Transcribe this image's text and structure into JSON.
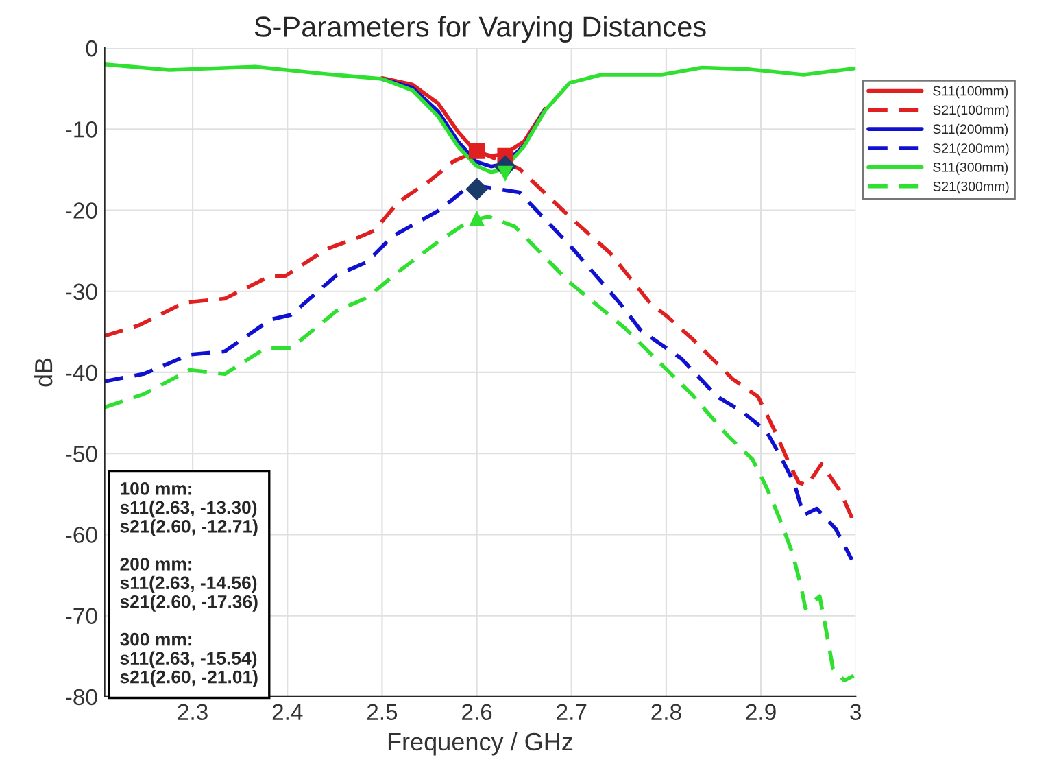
{
  "chart_data": {
    "type": "line",
    "title": "S-Parameters for Varying Distances",
    "xlabel": "Frequency / GHz",
    "ylabel": "dB",
    "xlim": [
      2.207,
      3
    ],
    "xticks": [
      2.3,
      2.4,
      2.5,
      2.6,
      2.7,
      2.8,
      2.9,
      3
    ],
    "ylim": [
      -80,
      0
    ],
    "yticks": [
      -80,
      -70,
      -60,
      -50,
      -40,
      -30,
      -20,
      -10,
      0
    ],
    "grid": true,
    "legend": "top right",
    "annotations": [
      "100 mm:\ns11(2.63, -13.30)\ns21(2.60, -12.71)\n\n200 mm:\ns11(2.63, -14.56)\ns21(2.60, -17.36)\n\n300 mm:\ns11(2.63, -15.54)\ns21(2.60, -21.01)"
    ],
    "series": [
      {
        "name": "S11(100mm)",
        "color": "#e02020",
        "line_style": "solid",
        "x": [
          2.5,
          2.532,
          2.559,
          2.58,
          2.599,
          2.615,
          2.629,
          2.65,
          2.672
        ],
        "values": [
          -3.7,
          -4.5,
          -6.8,
          -10.3,
          -12.8,
          -13.3,
          -13.1,
          -11.5,
          -7.5
        ]
      },
      {
        "name": "S21(100mm)",
        "color": "#e02020",
        "line_style": "dashed",
        "x": [
          2.207,
          2.243,
          2.291,
          2.334,
          2.382,
          2.398,
          2.441,
          2.474,
          2.492,
          2.517,
          2.549,
          2.575,
          2.6,
          2.645,
          2.698,
          2.741,
          2.784,
          2.8,
          2.827,
          2.87,
          2.897,
          2.915,
          2.93,
          2.94,
          2.949,
          2.964,
          2.984,
          3.0
        ],
        "values": [
          -35.5,
          -34.2,
          -31.4,
          -30.9,
          -28.1,
          -28.1,
          -24.8,
          -23.4,
          -22.5,
          -19.0,
          -16.5,
          -14.0,
          -12.7,
          -14.9,
          -20.8,
          -25.3,
          -31.6,
          -33.0,
          -35.8,
          -40.8,
          -43.0,
          -47.3,
          -51.3,
          -53.6,
          -53.9,
          -51.3,
          -54.7,
          -59.0
        ]
      },
      {
        "name": "S11(200mm)",
        "color": "#1010d0",
        "line_style": "solid",
        "x": [
          2.5,
          2.532,
          2.559,
          2.58,
          2.599,
          2.615,
          2.629,
          2.65,
          2.672
        ],
        "values": [
          -3.8,
          -4.9,
          -7.8,
          -11.5,
          -14.0,
          -14.6,
          -14.3,
          -12.0,
          -7.6
        ]
      },
      {
        "name": "S21(200mm)",
        "color": "#1010d0",
        "line_style": "dashed",
        "x": [
          2.207,
          2.248,
          2.297,
          2.334,
          2.382,
          2.404,
          2.452,
          2.484,
          2.511,
          2.559,
          2.591,
          2.6,
          2.645,
          2.698,
          2.752,
          2.773,
          2.816,
          2.854,
          2.881,
          2.906,
          2.92,
          2.935,
          2.945,
          2.959,
          2.979,
          2.996
        ],
        "values": [
          -41.1,
          -40.2,
          -37.8,
          -37.4,
          -33.5,
          -32.9,
          -28.0,
          -26.4,
          -23.2,
          -20.1,
          -17.1,
          -17.0,
          -17.8,
          -24.3,
          -31.6,
          -34.8,
          -38.3,
          -43.0,
          -44.9,
          -47.3,
          -50.2,
          -53.6,
          -57.6,
          -56.8,
          -59.3,
          -63.1
        ]
      },
      {
        "name": "S11(300mm)",
        "color": "#30e030",
        "line_style": "solid",
        "x": [
          2.207,
          2.275,
          2.366,
          2.441,
          2.5,
          2.532,
          2.559,
          2.58,
          2.599,
          2.615,
          2.629,
          2.65,
          2.672,
          2.698,
          2.731,
          2.795,
          2.838,
          2.886,
          2.945,
          3.0
        ],
        "values": [
          -2.0,
          -2.7,
          -2.3,
          -3.2,
          -3.8,
          -5.2,
          -8.4,
          -12.1,
          -14.5,
          -15.3,
          -14.9,
          -12.1,
          -7.7,
          -4.3,
          -3.3,
          -3.3,
          -2.4,
          -2.6,
          -3.3,
          -2.5
        ]
      },
      {
        "name": "S21(300mm)",
        "color": "#30e030",
        "line_style": "dashed",
        "x": [
          2.207,
          2.248,
          2.297,
          2.334,
          2.377,
          2.404,
          2.452,
          2.484,
          2.517,
          2.559,
          2.591,
          2.612,
          2.64,
          2.698,
          2.757,
          2.8,
          2.827,
          2.864,
          2.891,
          2.906,
          2.92,
          2.933,
          2.942,
          2.947,
          2.962,
          2.969,
          2.976,
          2.988,
          2.998
        ],
        "values": [
          -44.3,
          -42.7,
          -39.7,
          -40.2,
          -37.0,
          -37.0,
          -32.4,
          -30.8,
          -27.6,
          -23.9,
          -21.4,
          -20.8,
          -22.0,
          -28.9,
          -34.6,
          -39.6,
          -42.7,
          -47.7,
          -50.7,
          -54.2,
          -58.1,
          -62.2,
          -66.2,
          -69.1,
          -67.6,
          -71.9,
          -76.5,
          -78.0,
          -77.4
        ]
      },
      {
        "type": "scatter",
        "color": "#e02020",
        "marker": "square",
        "x": [
          2.63,
          2.6
        ],
        "values": [
          -13.3,
          -12.7
        ]
      },
      {
        "type": "scatter",
        "color": "#1a3a6a",
        "marker": "diamond",
        "x": [
          2.63,
          2.6
        ],
        "values": [
          -14.6,
          -17.4
        ]
      },
      {
        "type": "scatter",
        "color": "#30e030",
        "marker": "triangle_down",
        "x": [
          2.63
        ],
        "values": [
          -15.5
        ]
      },
      {
        "type": "scatter",
        "color": "#30e030",
        "marker": "triangle",
        "x": [
          2.6
        ],
        "values": [
          -21.0
        ]
      }
    ]
  }
}
